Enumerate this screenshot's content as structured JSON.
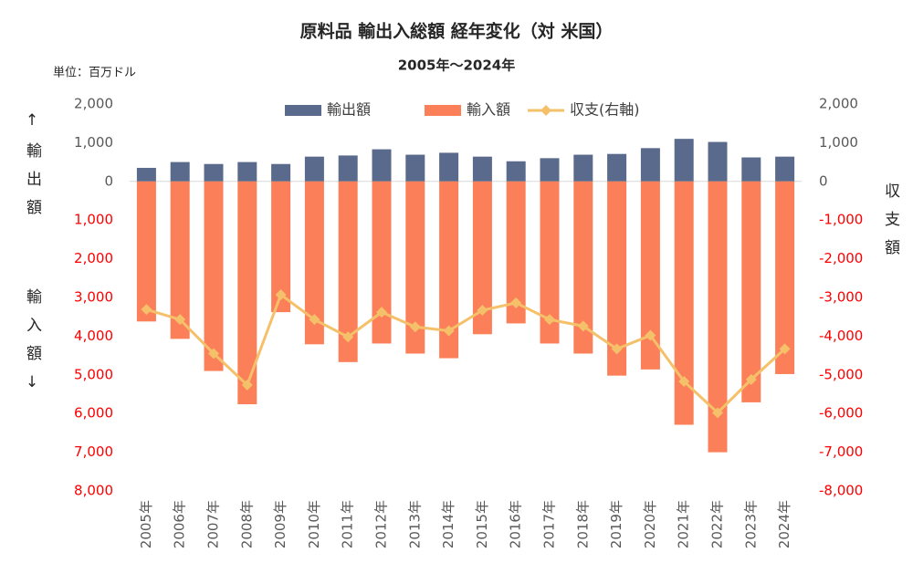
{
  "chart_data": {
    "type": "bar_line",
    "title": "原料品 輸出入総額 経年変化（対 米国）",
    "subtitle": "2005年～2024年",
    "unit_label": "単位：百万ドル",
    "y_label": [
      "↑輸出額",
      "輸入額↓"
    ],
    "y2_label": "収支額",
    "categories": [
      "2005年",
      "2006年",
      "2007年",
      "2008年",
      "2009年",
      "2010年",
      "2011年",
      "2012年",
      "2013年",
      "2014年",
      "2015年",
      "2016年",
      "2017年",
      "2018年",
      "2019年",
      "2020年",
      "2021年",
      "2022年",
      "2023年",
      "2024年"
    ],
    "series": [
      {
        "name": "輸出額",
        "kind": "bar",
        "color": "#5a6a8c",
        "values": [
          350,
          500,
          450,
          500,
          450,
          640,
          670,
          830,
          690,
          740,
          640,
          520,
          600,
          690,
          710,
          860,
          1100,
          1020,
          620,
          640
        ]
      },
      {
        "name": "輸入額",
        "kind": "bar",
        "color": "#fb7f58",
        "values": [
          -3620,
          -4070,
          -4900,
          -5760,
          -3380,
          -4210,
          -4670,
          -4190,
          -4450,
          -4570,
          -3950,
          -3670,
          -4190,
          -4450,
          -5020,
          -4860,
          -6290,
          -7000,
          -5710,
          -4980
        ]
      },
      {
        "name": "収支(右軸)",
        "kind": "line",
        "axis": "y2",
        "color": "#f5c06a",
        "values": [
          -3310,
          -3570,
          -4450,
          -5260,
          -2930,
          -3570,
          -4020,
          -3380,
          -3760,
          -3860,
          -3330,
          -3140,
          -3570,
          -3740,
          -4330,
          -3980,
          -5170,
          -5980,
          -5120,
          -4330
        ]
      }
    ],
    "ylim": [
      -8000,
      2000
    ],
    "yticks": [
      {
        "value": 2000,
        "label": "2,000"
      },
      {
        "value": 1000,
        "label": "1,000"
      },
      0,
      {
        "value": -1000,
        "label": "1,000"
      },
      {
        "value": -2000,
        "label": "2,000"
      },
      {
        "value": -3000,
        "label": "3,000"
      },
      {
        "value": -4000,
        "label": "4,000"
      },
      {
        "value": -5000,
        "label": "5,000"
      },
      {
        "value": -6000,
        "label": "6,000"
      },
      {
        "value": -7000,
        "label": "7,000"
      },
      {
        "value": -8000,
        "label": "8,000"
      }
    ],
    "y2lim": [
      -8000,
      2000
    ],
    "y2ticks": [
      {
        "value": 2000,
        "label": "2,000"
      },
      {
        "value": 1000,
        "label": "1,000"
      },
      0,
      {
        "value": -1000,
        "label": "-1,000"
      },
      {
        "value": -2000,
        "label": "-2,000"
      },
      {
        "value": -3000,
        "label": "-3,000"
      },
      {
        "value": -4000,
        "label": "-4,000"
      },
      {
        "value": -5000,
        "label": "-5,000"
      },
      {
        "value": -6000,
        "label": "-6,000"
      },
      {
        "value": -7000,
        "label": "-7,000"
      },
      {
        "value": -8000,
        "label": "-8,000"
      }
    ],
    "tick_color": "#595959",
    "negative_tick_color": "#ff0000",
    "legend": "top"
  }
}
